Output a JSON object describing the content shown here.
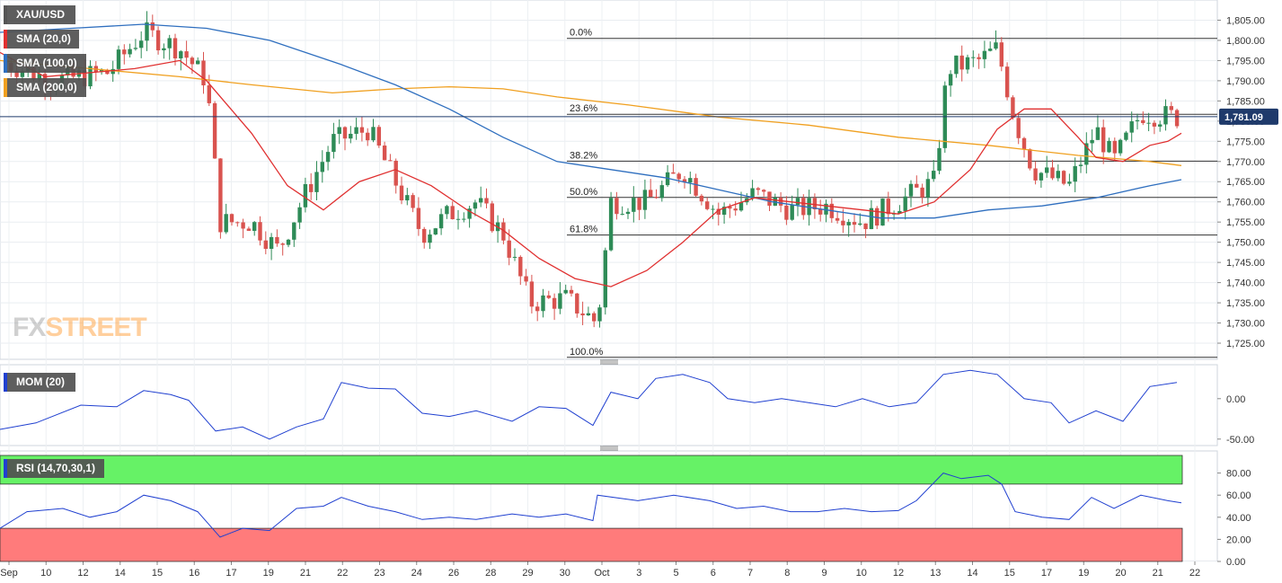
{
  "symbol": "XAU/USD",
  "overlays": [
    {
      "label": "SMA (20,0)",
      "color": "#e03030"
    },
    {
      "label": "SMA (100,0)",
      "color": "#2f6fbf"
    },
    {
      "label": "SMA (200,0)",
      "color": "#f0a020"
    }
  ],
  "logo": {
    "part1": "FX",
    "part2": "STREET"
  },
  "colors": {
    "bull": "#2e8b57",
    "bear": "#d9534f",
    "sma20": "#e03030",
    "sma100": "#2f6fbf",
    "sma200": "#f0a020",
    "indicator": "#2040d0"
  },
  "current_price_label": "1,781.09",
  "chart_data": [
    {
      "type": "candlestick",
      "title": "XAU/USD",
      "ylim": [
        1721,
        1810
      ],
      "y_ticks": [
        "1,725.00",
        "1,730.00",
        "1,735.00",
        "1,740.00",
        "1,745.00",
        "1,750.00",
        "1,755.00",
        "1,760.00",
        "1,765.00",
        "1,770.00",
        "1,775.00",
        "1,780.00",
        "1,785.00",
        "1,790.00",
        "1,795.00",
        "1,800.00",
        "1,805.00"
      ],
      "x_ticks": [
        "Sep",
        "10",
        "12",
        "14",
        "15",
        "16",
        "17",
        "19",
        "21",
        "22",
        "23",
        "24",
        "26",
        "28",
        "29",
        "30",
        "Oct",
        "3",
        "5",
        "6",
        "7",
        "8",
        "9",
        "10",
        "12",
        "13",
        "14",
        "15",
        "17",
        "19",
        "20",
        "21",
        "22"
      ],
      "current_price": 1781.09,
      "fibonacci": [
        {
          "label": "0.0%",
          "value": 1800.5
        },
        {
          "label": "23.6%",
          "value": 1781.7
        },
        {
          "label": "38.2%",
          "value": 1770.1
        },
        {
          "label": "50.0%",
          "value": 1761.1
        },
        {
          "label": "61.8%",
          "value": 1751.8
        },
        {
          "label": "100.0%",
          "value": 1721.5
        }
      ],
      "sma_keypoints": {
        "sma20": [
          [
            0,
            1797
          ],
          [
            50,
            1791
          ],
          [
            150,
            1793
          ],
          [
            200,
            1795
          ],
          [
            230,
            1790
          ],
          [
            280,
            1777
          ],
          [
            320,
            1764
          ],
          [
            360,
            1758
          ],
          [
            400,
            1765
          ],
          [
            440,
            1768
          ],
          [
            480,
            1764
          ],
          [
            520,
            1758
          ],
          [
            560,
            1753
          ],
          [
            600,
            1746
          ],
          [
            640,
            1741
          ],
          [
            680,
            1739
          ],
          [
            720,
            1743
          ],
          [
            760,
            1750
          ],
          [
            800,
            1758
          ],
          [
            840,
            1761
          ],
          [
            880,
            1760
          ],
          [
            920,
            1759
          ],
          [
            960,
            1758
          ],
          [
            1000,
            1757
          ],
          [
            1040,
            1760
          ],
          [
            1080,
            1768
          ],
          [
            1110,
            1778
          ],
          [
            1140,
            1783
          ],
          [
            1170,
            1783
          ],
          [
            1200,
            1776
          ],
          [
            1220,
            1771
          ],
          [
            1250,
            1770
          ],
          [
            1280,
            1774
          ],
          [
            1300,
            1775
          ],
          [
            1315,
            1777
          ]
        ],
        "sma100": [
          [
            0,
            1802
          ],
          [
            80,
            1803
          ],
          [
            160,
            1804
          ],
          [
            230,
            1803
          ],
          [
            300,
            1800
          ],
          [
            380,
            1794
          ],
          [
            440,
            1789
          ],
          [
            500,
            1783
          ],
          [
            560,
            1776
          ],
          [
            620,
            1770
          ],
          [
            680,
            1768
          ],
          [
            740,
            1766
          ],
          [
            800,
            1763
          ],
          [
            860,
            1760
          ],
          [
            920,
            1758
          ],
          [
            980,
            1756
          ],
          [
            1040,
            1756
          ],
          [
            1100,
            1758
          ],
          [
            1160,
            1759
          ],
          [
            1220,
            1761
          ],
          [
            1280,
            1764
          ],
          [
            1315,
            1765.5
          ]
        ],
        "sma200": [
          [
            0,
            1795
          ],
          [
            100,
            1793
          ],
          [
            200,
            1791
          ],
          [
            280,
            1789
          ],
          [
            370,
            1787
          ],
          [
            440,
            1788
          ],
          [
            500,
            1788.5
          ],
          [
            560,
            1788
          ],
          [
            620,
            1786
          ],
          [
            700,
            1784
          ],
          [
            800,
            1781
          ],
          [
            900,
            1779
          ],
          [
            1000,
            1776
          ],
          [
            1100,
            1774
          ],
          [
            1200,
            1771.5
          ],
          [
            1280,
            1770
          ],
          [
            1315,
            1769
          ]
        ]
      }
    },
    {
      "type": "line",
      "title": "MOM (20)",
      "ylim": [
        -58,
        42
      ],
      "y_ticks": [
        "0.00",
        "-50.00"
      ],
      "keypoints": [
        [
          0,
          -38
        ],
        [
          40,
          -30
        ],
        [
          90,
          -8
        ],
        [
          130,
          -10
        ],
        [
          160,
          10
        ],
        [
          190,
          5
        ],
        [
          210,
          -2
        ],
        [
          240,
          -40
        ],
        [
          270,
          -35
        ],
        [
          300,
          -50
        ],
        [
          330,
          -35
        ],
        [
          360,
          -25
        ],
        [
          380,
          20
        ],
        [
          410,
          13
        ],
        [
          440,
          12
        ],
        [
          470,
          -18
        ],
        [
          500,
          -22
        ],
        [
          530,
          -15
        ],
        [
          570,
          -28
        ],
        [
          600,
          -10
        ],
        [
          630,
          -12
        ],
        [
          660,
          -33
        ],
        [
          680,
          8
        ],
        [
          710,
          0
        ],
        [
          730,
          25
        ],
        [
          760,
          30
        ],
        [
          790,
          20
        ],
        [
          810,
          0
        ],
        [
          840,
          -5
        ],
        [
          870,
          0
        ],
        [
          900,
          -5
        ],
        [
          930,
          -10
        ],
        [
          960,
          0
        ],
        [
          990,
          -10
        ],
        [
          1020,
          -5
        ],
        [
          1050,
          30
        ],
        [
          1080,
          35
        ],
        [
          1110,
          30
        ],
        [
          1140,
          0
        ],
        [
          1170,
          -5
        ],
        [
          1190,
          -30
        ],
        [
          1220,
          -15
        ],
        [
          1250,
          -28
        ],
        [
          1280,
          15
        ],
        [
          1310,
          20
        ]
      ]
    },
    {
      "type": "line",
      "title": "RSI (14,70,30,1)",
      "ylim": [
        0,
        100
      ],
      "y_ticks": [
        "0.00",
        "20.00",
        "40.00",
        "60.00",
        "80.00"
      ],
      "overbought": 70,
      "oversold": 30,
      "keypoints": [
        [
          0,
          30
        ],
        [
          30,
          45
        ],
        [
          70,
          48
        ],
        [
          100,
          40
        ],
        [
          130,
          45
        ],
        [
          160,
          60
        ],
        [
          190,
          55
        ],
        [
          220,
          45
        ],
        [
          245,
          22
        ],
        [
          270,
          30
        ],
        [
          300,
          28
        ],
        [
          330,
          48
        ],
        [
          360,
          50
        ],
        [
          380,
          58
        ],
        [
          410,
          50
        ],
        [
          440,
          45
        ],
        [
          470,
          38
        ],
        [
          500,
          40
        ],
        [
          530,
          38
        ],
        [
          570,
          43
        ],
        [
          600,
          40
        ],
        [
          630,
          43
        ],
        [
          660,
          37
        ],
        [
          665,
          60
        ],
        [
          710,
          55
        ],
        [
          750,
          60
        ],
        [
          790,
          55
        ],
        [
          820,
          48
        ],
        [
          850,
          50
        ],
        [
          880,
          45
        ],
        [
          910,
          45
        ],
        [
          940,
          48
        ],
        [
          970,
          45
        ],
        [
          1000,
          46
        ],
        [
          1020,
          55
        ],
        [
          1050,
          80
        ],
        [
          1070,
          75
        ],
        [
          1100,
          78
        ],
        [
          1115,
          70
        ],
        [
          1130,
          45
        ],
        [
          1160,
          40
        ],
        [
          1190,
          38
        ],
        [
          1215,
          58
        ],
        [
          1240,
          48
        ],
        [
          1270,
          60
        ],
        [
          1300,
          55
        ],
        [
          1315,
          53
        ]
      ]
    }
  ]
}
